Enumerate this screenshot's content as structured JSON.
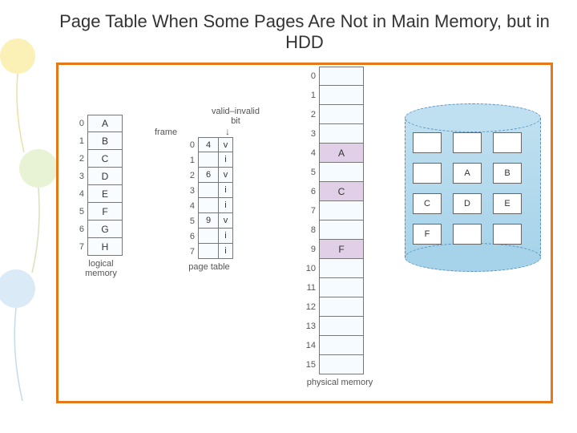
{
  "title": "Page Table When Some Pages Are Not in Main Memory, but in HDD",
  "colors": {
    "frame_border": "#e67817",
    "cell_border": "#777777",
    "cell_bg": "#f9fcfe",
    "pm_fill": "#e0cfe6",
    "hdd_fill": "#bfe0f0",
    "hdd_border": "#5a8fbf",
    "text": "#555555"
  },
  "logical_memory": {
    "label": "logical memory",
    "rows": [
      {
        "idx": "0",
        "val": "A"
      },
      {
        "idx": "1",
        "val": "B"
      },
      {
        "idx": "2",
        "val": "C"
      },
      {
        "idx": "3",
        "val": "D"
      },
      {
        "idx": "4",
        "val": "E"
      },
      {
        "idx": "5",
        "val": "F"
      },
      {
        "idx": "6",
        "val": "G"
      },
      {
        "idx": "7",
        "val": "H"
      }
    ]
  },
  "page_table": {
    "label": "page table",
    "header_frame": "frame",
    "header_bit": "valid–invalid bit",
    "rows": [
      {
        "idx": "0",
        "frame": "4",
        "bit": "v"
      },
      {
        "idx": "1",
        "frame": "",
        "bit": "i"
      },
      {
        "idx": "2",
        "frame": "6",
        "bit": "v"
      },
      {
        "idx": "3",
        "frame": "",
        "bit": "i"
      },
      {
        "idx": "4",
        "frame": "",
        "bit": "i"
      },
      {
        "idx": "5",
        "frame": "9",
        "bit": "v"
      },
      {
        "idx": "6",
        "frame": "",
        "bit": "i"
      },
      {
        "idx": "7",
        "frame": "",
        "bit": "i"
      }
    ]
  },
  "physical_memory": {
    "label": "physical memory",
    "rows": [
      {
        "idx": "0",
        "val": ""
      },
      {
        "idx": "1",
        "val": ""
      },
      {
        "idx": "2",
        "val": ""
      },
      {
        "idx": "3",
        "val": ""
      },
      {
        "idx": "4",
        "val": "A"
      },
      {
        "idx": "5",
        "val": ""
      },
      {
        "idx": "6",
        "val": "C"
      },
      {
        "idx": "7",
        "val": ""
      },
      {
        "idx": "8",
        "val": ""
      },
      {
        "idx": "9",
        "val": "F"
      },
      {
        "idx": "10",
        "val": ""
      },
      {
        "idx": "11",
        "val": ""
      },
      {
        "idx": "12",
        "val": ""
      },
      {
        "idx": "13",
        "val": ""
      },
      {
        "idx": "14",
        "val": ""
      },
      {
        "idx": "15",
        "val": ""
      }
    ]
  },
  "hdd": {
    "cells": [
      "",
      "",
      "",
      "",
      "A",
      "B",
      "C",
      "D",
      "E",
      "F",
      "",
      ""
    ]
  },
  "deco": {
    "balloon1": "#f7e26b",
    "balloon2": "#cfe8a9",
    "balloon3": "#b7d6ef"
  }
}
